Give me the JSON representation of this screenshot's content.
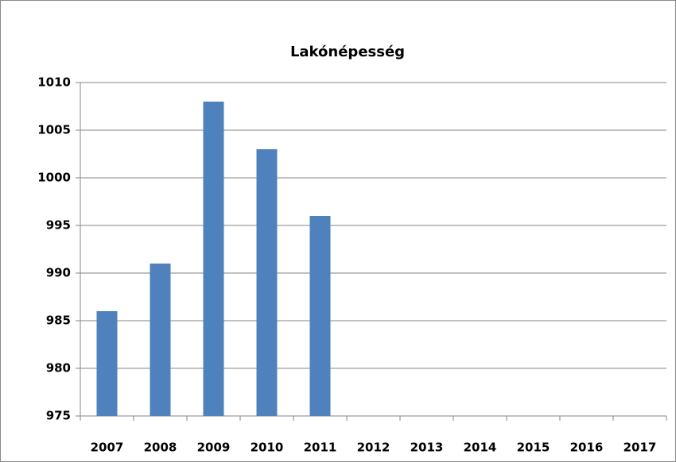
{
  "chart_data": {
    "type": "bar",
    "title": "Lakónépesség",
    "categories": [
      "2007",
      "2008",
      "2009",
      "2010",
      "2011",
      "2012",
      "2013",
      "2014",
      "2015",
      "2016",
      "2017"
    ],
    "values": [
      986,
      991,
      1008,
      1003,
      996,
      null,
      null,
      null,
      null,
      null,
      null
    ],
    "color": "#4f81bd",
    "ylim": [
      975,
      1010
    ],
    "yticks": [
      975,
      980,
      985,
      990,
      995,
      1000,
      1005,
      1010
    ],
    "grid": true
  }
}
